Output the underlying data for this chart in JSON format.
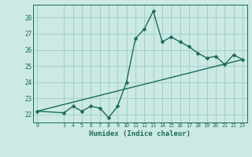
{
  "title": "",
  "xlabel": "Humidex (Indice chaleur)",
  "ylabel": "",
  "background_color": "#cce9e4",
  "grid_color": "#99cccc",
  "line_color": "#1a6b5a",
  "trend_color": "#1a6b5a",
  "x_data": [
    0,
    3,
    4,
    5,
    6,
    7,
    8,
    9,
    10,
    11,
    12,
    13,
    14,
    15,
    16,
    17,
    18,
    19,
    20,
    21,
    22,
    23
  ],
  "y_data": [
    22.2,
    22.1,
    22.5,
    22.2,
    22.5,
    22.4,
    21.8,
    22.5,
    24.0,
    26.7,
    27.3,
    28.4,
    26.5,
    26.8,
    26.5,
    26.2,
    25.8,
    25.5,
    25.6,
    25.1,
    25.7,
    25.4
  ],
  "trend_x": [
    0,
    23
  ],
  "trend_y": [
    22.2,
    25.4
  ],
  "ylim": [
    21.5,
    28.8
  ],
  "xlim": [
    -0.5,
    23.5
  ],
  "yticks": [
    22,
    23,
    24,
    25,
    26,
    27,
    28
  ],
  "xticks": [
    0,
    3,
    4,
    5,
    6,
    7,
    8,
    9,
    10,
    11,
    12,
    13,
    14,
    15,
    16,
    17,
    18,
    19,
    20,
    21,
    22,
    23
  ],
  "marker_size": 2.5,
  "line_width": 1.0
}
